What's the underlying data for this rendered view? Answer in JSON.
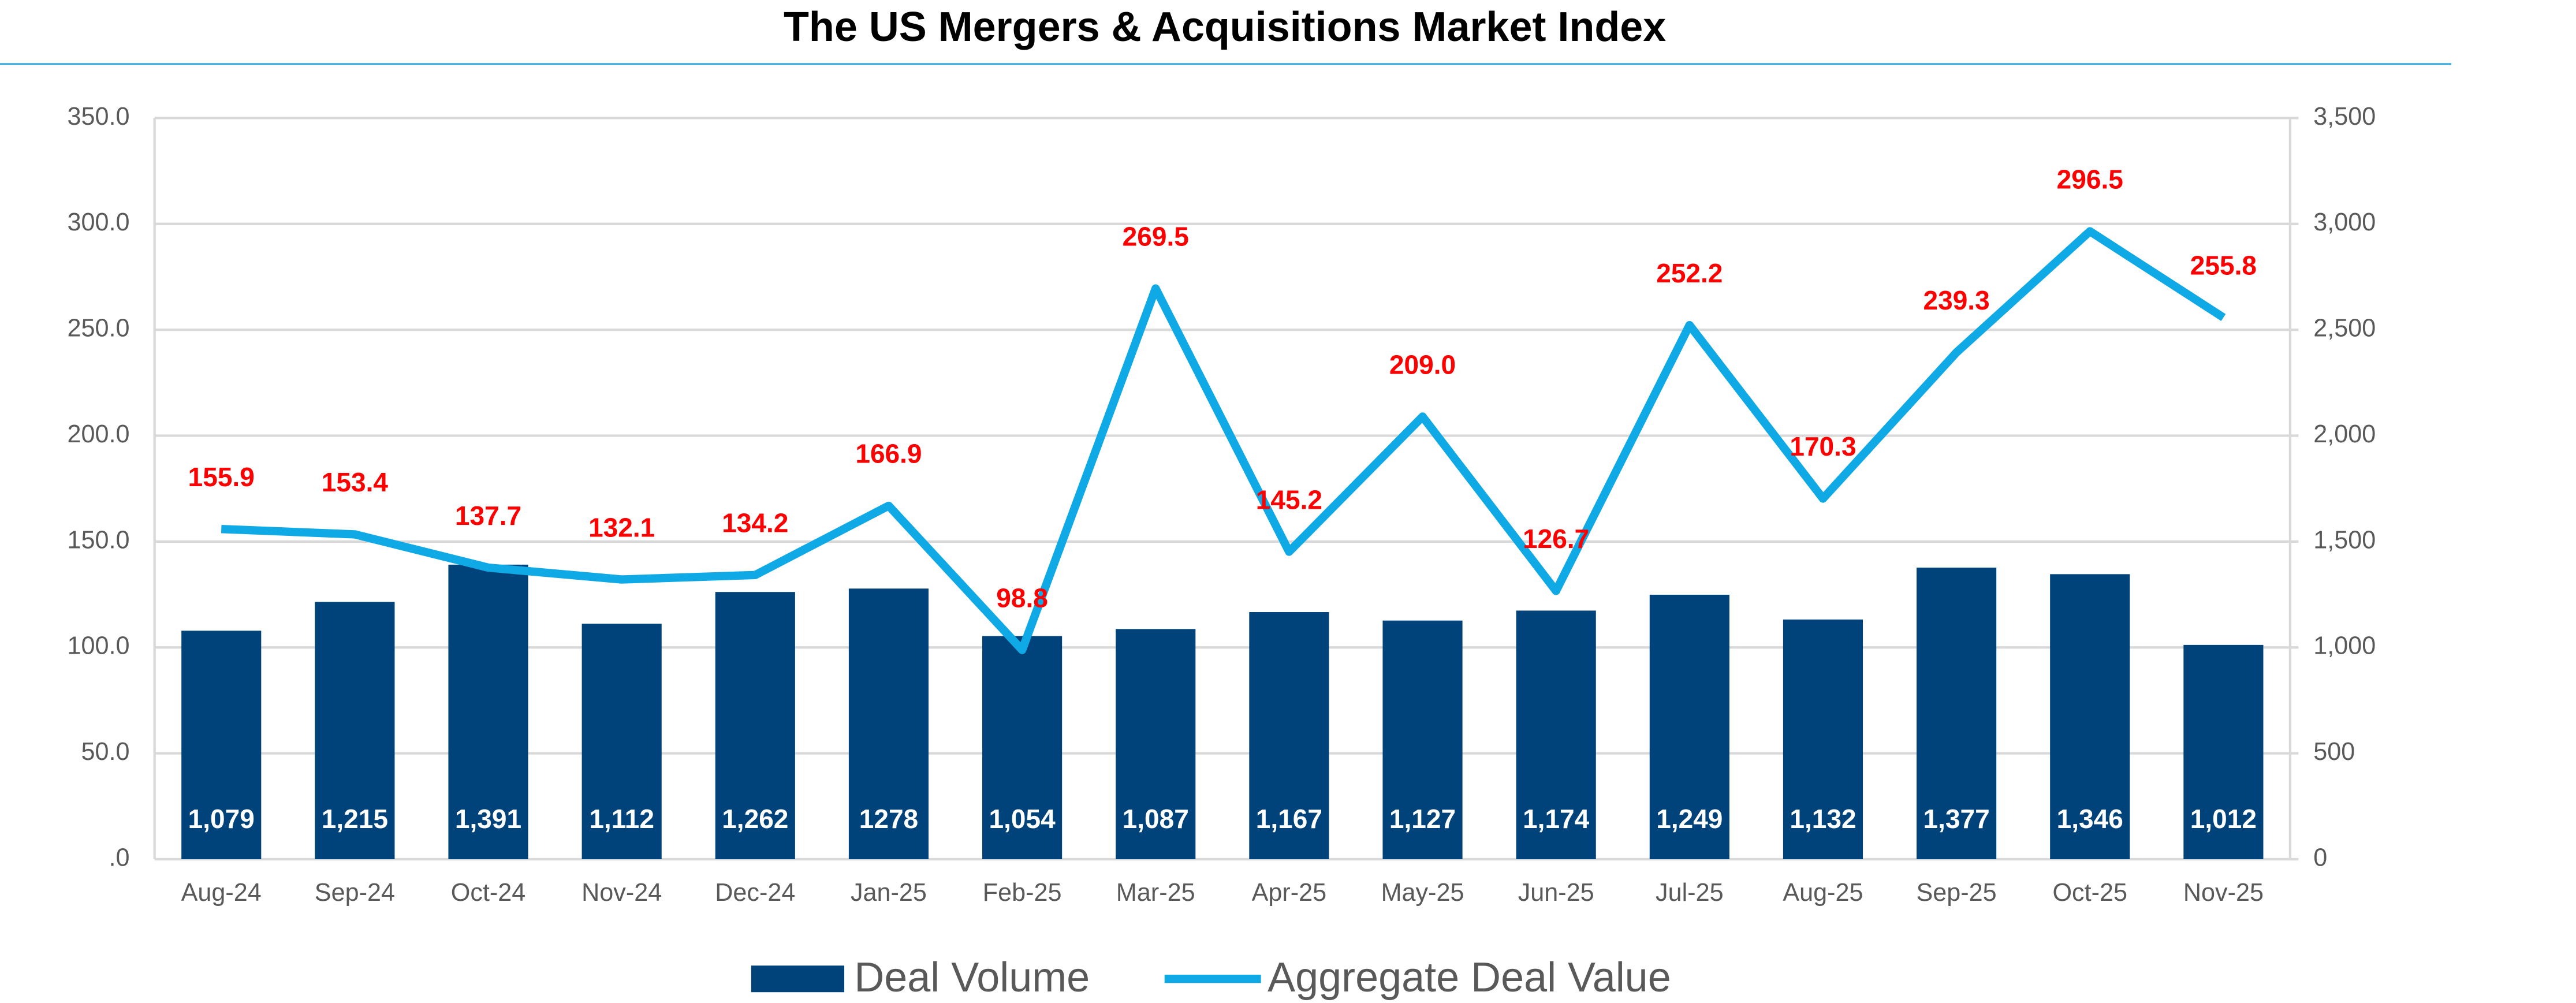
{
  "chart_data": {
    "type": "combo",
    "title": "The US Mergers & Acquisitions Market Index",
    "categories": [
      "Aug-24",
      "Sep-24",
      "Oct-24",
      "Nov-24",
      "Dec-24",
      "Jan-25",
      "Feb-25",
      "Mar-25",
      "Apr-25",
      "May-25",
      "Jun-25",
      "Jul-25",
      "Aug-25",
      "Sep-25",
      "Oct-25",
      "Nov-25"
    ],
    "series": [
      {
        "name": "Deal Volume",
        "type": "bar",
        "axis": "y2",
        "color": "#00427a",
        "values": [
          1079,
          1215,
          1391,
          1112,
          1262,
          1278,
          1054,
          1087,
          1167,
          1127,
          1174,
          1249,
          1132,
          1377,
          1346,
          1012
        ],
        "value_labels": [
          "1,079",
          "1,215",
          "1,391",
          "1,112",
          "1,262",
          "1278",
          "1,054",
          "1,087",
          "1,167",
          "1,127",
          "1,174",
          "1,249",
          "1,132",
          "1,377",
          "1,346",
          "1,012"
        ],
        "label_color": "#ffffff"
      },
      {
        "name": "Aggregate Deal Value",
        "type": "line",
        "color": "#0fa9e6",
        "values": [
          155.9,
          153.4,
          137.7,
          132.1,
          134.2,
          166.9,
          98.8,
          269.5,
          145.2,
          209.0,
          126.7,
          252.2,
          170.3,
          239.3,
          296.5,
          255.8
        ],
        "value_labels": [
          "155.9",
          "153.4",
          "137.7",
          "132.1",
          "134.2",
          "166.9",
          "98.8",
          "269.5",
          "145.2",
          "209.0",
          "126.7",
          "252.2",
          "170.3",
          "239.3",
          "296.5",
          "255.8"
        ],
        "label_color": "#ff0000"
      }
    ],
    "ylim": [
      0,
      350
    ],
    "yticks": [
      {
        "value": 0,
        "label": ".0"
      },
      {
        "value": 50,
        "label": "50.0"
      },
      {
        "value": 100,
        "label": "100.0"
      },
      {
        "value": 150,
        "label": "150.0"
      },
      {
        "value": 200,
        "label": "200.0"
      },
      {
        "value": 250,
        "label": "250.0"
      },
      {
        "value": 300,
        "label": "300.0"
      },
      {
        "value": 350,
        "label": "350.0"
      }
    ],
    "y2lim": [
      0,
      3500
    ],
    "y2ticks": [
      0,
      500,
      {
        "value": 1000,
        "label": "1,000"
      },
      {
        "value": 1500,
        "label": "1,500"
      },
      {
        "value": 2000,
        "label": "2,000"
      },
      {
        "value": 2500,
        "label": "2,500"
      },
      {
        "value": 3000,
        "label": "3,000"
      },
      {
        "value": 3500,
        "label": "3,500"
      }
    ],
    "grid": true,
    "legend": "bottom"
  }
}
